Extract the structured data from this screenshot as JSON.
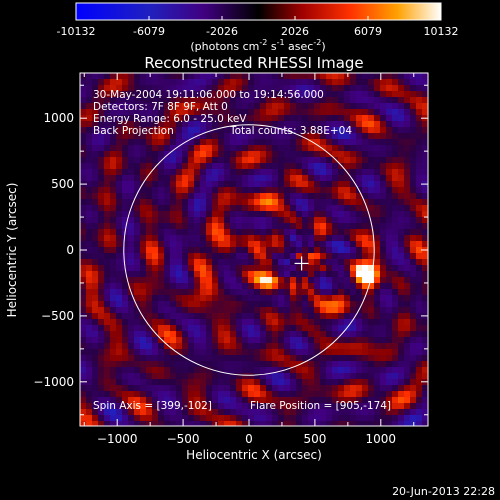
{
  "chart_data": {
    "type": "heatmap",
    "title": "Reconstructed RHESSI Image",
    "xlabel": "Heliocentric X (arcsec)",
    "ylabel": "Heliocentric Y (arcsec)",
    "xlim": [
      -1300,
      1300
    ],
    "ylim": [
      -1300,
      1300
    ],
    "x_ticks": [
      -1000,
      -500,
      0,
      500,
      1000
    ],
    "y_ticks": [
      1000,
      500,
      0,
      -500,
      -1000
    ],
    "colorbar": {
      "range": [
        -10132,
        10132
      ],
      "ticks": [
        "-10132",
        "-6079",
        "-2026",
        "2026",
        "6079",
        "10132"
      ],
      "unit_main": "(photons cm",
      "unit_exp1": "-2",
      "unit_mid": " s",
      "unit_exp2": "-1",
      "unit_post": " asec",
      "unit_exp3": "-2",
      "unit_end": ")"
    },
    "annotations": {
      "time_range": "30-May-2004 19:11:06.000 to 19:14:56.000",
      "detectors": "Detectors: 7F 8F 9F, Att 0",
      "energy": "Energy Range: 6.0 - 25.0 keV",
      "method": "Back Projection",
      "counts": "Total counts: 3.88E+04",
      "spin_axis": "Spin Axis = [399,-102]",
      "flare_position": "Flare Position = [905,-174]"
    },
    "solar_limb_radius_arcsec": 950,
    "cross_position": [
      399,
      -102
    ],
    "bright_sources": [
      {
        "x": 905,
        "y": -174,
        "value": 10132
      },
      {
        "x": -120,
        "y": 50,
        "value": 6079
      },
      {
        "x": 150,
        "y": -220,
        "value": 6079
      },
      {
        "x": 520,
        "y": -420,
        "value": 5000
      },
      {
        "x": -330,
        "y": -320,
        "value": 4200
      },
      {
        "x": 150,
        "y": 360,
        "value": 4000
      }
    ],
    "footer_date": "20-Jun-2013 22:28"
  }
}
